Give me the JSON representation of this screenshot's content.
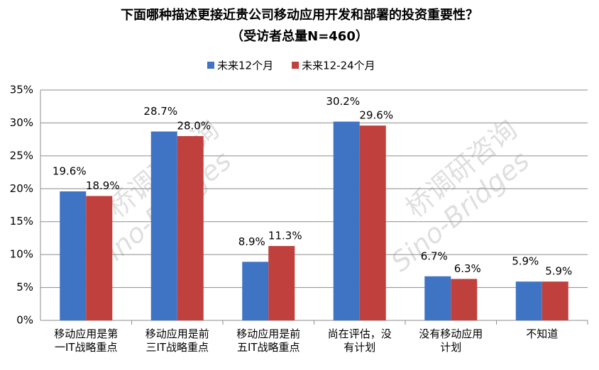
{
  "chart_data": {
    "type": "bar",
    "title": "下面哪种描述更接近贵公司移动应用开发和部署的投资重要性？",
    "subtitle": "（受访者总量N=460）",
    "watermark": [
      "桥调研咨询",
      "Sino-Bridges"
    ],
    "categories": [
      "移动应用是第一IT战略重点",
      "移动应用是前三IT战略重点",
      "移动应用是前五IT战略重点",
      "尚在评估，没有计划",
      "没有移动应用计划",
      "不知道"
    ],
    "series": [
      {
        "name": "未来12个月",
        "color": "#3f74c4",
        "values": [
          19.6,
          28.7,
          8.9,
          30.2,
          6.7,
          5.9
        ],
        "value_labels": [
          "19.6%",
          "28.7%",
          "8.9%",
          "30.2%",
          "6.7%",
          "5.9%"
        ]
      },
      {
        "name": "未来12-24个月",
        "color": "#c0403d",
        "values": [
          18.9,
          28.0,
          11.3,
          29.6,
          6.3,
          5.9
        ],
        "value_labels": [
          "18.9%",
          "28.0%",
          "11.3%",
          "29.6%",
          "6.3%",
          "5.9%"
        ]
      }
    ],
    "ylim": [
      0,
      35
    ],
    "yticks": [
      {
        "value": 0,
        "label": "0%"
      },
      {
        "value": 5,
        "label": "5%"
      },
      {
        "value": 10,
        "label": "10%"
      },
      {
        "value": 15,
        "label": "15%"
      },
      {
        "value": 20,
        "label": "20%"
      },
      {
        "value": 25,
        "label": "25%"
      },
      {
        "value": 30,
        "label": "30%"
      },
      {
        "value": 35,
        "label": "35%"
      }
    ],
    "grid": true,
    "legend": "top"
  }
}
